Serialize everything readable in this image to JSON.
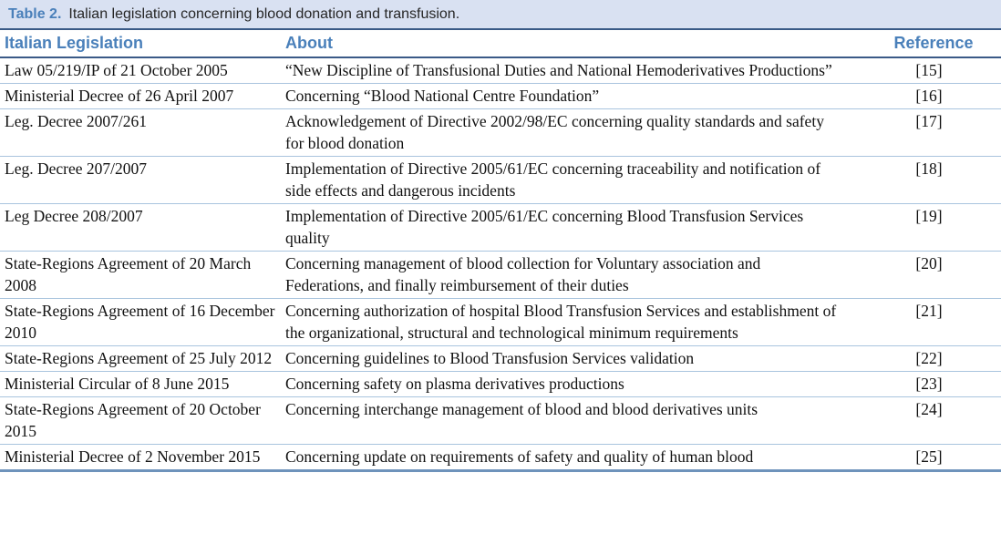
{
  "caption": {
    "label": "Table 2.",
    "text": "Italian legislation concerning blood donation and transfusion."
  },
  "colors": {
    "caption_background": "#d9e1f2",
    "header_blue": "#4a80ba",
    "dark_rule": "#3a5a87",
    "light_row_rule": "#a9c4de",
    "bottom_rule": "#6e93bb"
  },
  "table": {
    "headers": [
      "Italian Legislation",
      "About",
      "Reference"
    ],
    "rows": [
      {
        "legislation": "Law 05/219/IP of 21 October 2005",
        "about": "“New Discipline of Transfusional Duties and National Hemoderivatives Productions”",
        "reference": "[15]"
      },
      {
        "legislation": "Ministerial Decree of 26 April 2007",
        "about": "Concerning “Blood National Centre Foundation”",
        "reference": "[16]"
      },
      {
        "legislation": "Leg. Decree 2007/261",
        "about": "Acknowledgement of Directive 2002/98/EC concerning quality standards and safety for blood donation",
        "reference": "[17]"
      },
      {
        "legislation": "Leg. Decree 207/2007",
        "about": "Implementation of Directive 2005/61/EC concerning traceability and notification of side effects and dangerous incidents",
        "reference": "[18]"
      },
      {
        "legislation": "Leg Decree 208/2007",
        "about": "Implementation of Directive 2005/61/EC concerning Blood Transfusion Services quality",
        "reference": "[19]"
      },
      {
        "legislation": "State-Regions Agreement of 20 March 2008",
        "about": "Concerning management of blood collection for Voluntary association and Federations, and finally reimbursement of their duties",
        "reference": "[20]"
      },
      {
        "legislation": "State-Regions Agreement of 16 December 2010",
        "about": "Concerning authorization of hospital Blood Transfusion Services and establishment of the organizational, structural and technological minimum requirements",
        "reference": "[21]"
      },
      {
        "legislation": "State-Regions Agreement of 25 July 2012",
        "about": "Concerning guidelines to Blood Transfusion Services validation",
        "reference": "[22]"
      },
      {
        "legislation": "Ministerial Circular of 8 June 2015",
        "about": "Concerning safety on plasma derivatives productions",
        "reference": "[23]"
      },
      {
        "legislation": "State-Regions Agreement of 20 October 2015",
        "about": "Concerning interchange management of blood and blood derivatives units",
        "reference": "[24]"
      },
      {
        "legislation": "Ministerial Decree of 2 November 2015",
        "about": "Concerning update on requirements of safety and quality of human blood",
        "reference": "[25]"
      }
    ]
  }
}
